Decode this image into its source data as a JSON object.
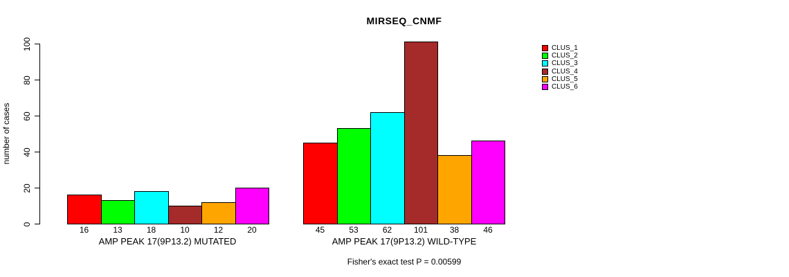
{
  "chart_data": {
    "type": "bar",
    "title": "MIRSEQ_CNMF",
    "ylabel": "number of cases",
    "ylim": [
      0,
      100
    ],
    "yticks": [
      0,
      20,
      40,
      60,
      80,
      100
    ],
    "grid": false,
    "legend_position": "right",
    "series_labels": [
      "CLUS_1",
      "CLUS_2",
      "CLUS_3",
      "CLUS_4",
      "CLUS_5",
      "CLUS_6"
    ],
    "colors": [
      "#FF0000",
      "#00FF00",
      "#00FFFF",
      "#A52A2A",
      "#FFA500",
      "#FF00FF"
    ],
    "bar_border_color": "#000000",
    "groups": [
      {
        "label": "AMP PEAK 17(9P13.2) MUTATED",
        "values": [
          16,
          13,
          18,
          10,
          12,
          20
        ]
      },
      {
        "label": "AMP PEAK 17(9P13.2) WILD-TYPE",
        "values": [
          45,
          53,
          62,
          101,
          38,
          46
        ]
      }
    ],
    "annotation": "Fisher's exact test P = 0.00599"
  }
}
